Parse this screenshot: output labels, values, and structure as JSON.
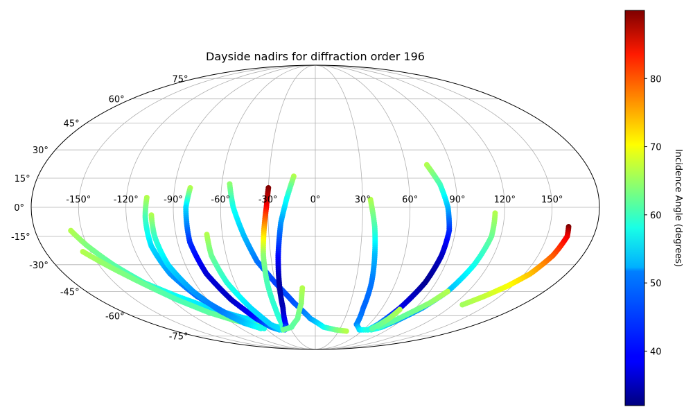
{
  "chart_data": {
    "type": "scatter",
    "projection": "mollweide",
    "title": "Dayside nadirs for diffraction order 196",
    "xlabel": "",
    "ylabel": "",
    "grid": true,
    "xlim": [
      -180,
      180
    ],
    "ylim": [
      -90,
      90
    ],
    "lon_ticks": [
      "-150°",
      "-120°",
      "-90°",
      "-60°",
      "-30°",
      "0°",
      "30°",
      "60°",
      "90°",
      "120°",
      "150°"
    ],
    "lat_ticks": [
      "75°",
      "60°",
      "45°",
      "30°",
      "15°",
      "0°",
      "-15°",
      "-30°",
      "-45°",
      "-60°",
      "-75°"
    ],
    "colorbar": {
      "label": "Incidence Angle (degrees)",
      "colormap": "jet",
      "range": [
        32,
        90
      ],
      "ticks": [
        "40",
        "50",
        "60",
        "70",
        "80"
      ],
      "tick_values": [
        40,
        50,
        60,
        70,
        80
      ]
    },
    "series": [
      {
        "points": [
          [
            -157,
            -12,
            64
          ],
          [
            -150,
            -20,
            61
          ],
          [
            -140,
            -30,
            59
          ],
          [
            -128,
            -40,
            57
          ],
          [
            -112,
            -48,
            54
          ],
          [
            -95,
            -55,
            52
          ],
          [
            -78,
            -60,
            51
          ],
          [
            -62,
            -64,
            53
          ],
          [
            -50,
            -67,
            57
          ],
          [
            -40,
            -68,
            55
          ]
        ]
      },
      {
        "points": [
          [
            -155,
            -23,
            64
          ],
          [
            -145,
            -30,
            62
          ],
          [
            -130,
            -40,
            60
          ],
          [
            -115,
            -50,
            58
          ],
          [
            -100,
            -58,
            59
          ],
          [
            -85,
            -63,
            60
          ],
          [
            -72,
            -66,
            61
          ],
          [
            -60,
            -68,
            62
          ]
        ]
      },
      {
        "points": [
          [
            -107,
            5,
            64
          ],
          [
            -108,
            -5,
            58
          ],
          [
            -108,
            -20,
            52
          ],
          [
            -104,
            -35,
            48
          ],
          [
            -96,
            -48,
            45
          ],
          [
            -85,
            -58,
            47
          ],
          [
            -72,
            -66,
            52
          ],
          [
            -62,
            -69,
            55
          ]
        ]
      },
      {
        "points": [
          [
            -104,
            -4,
            64
          ],
          [
            -104,
            -15,
            57
          ],
          [
            -102,
            -30,
            52
          ],
          [
            -96,
            -45,
            48
          ],
          [
            -88,
            -57,
            46
          ],
          [
            -78,
            -65,
            50
          ],
          [
            -66,
            -69,
            55
          ]
        ]
      },
      {
        "points": [
          [
            -80,
            10,
            64
          ],
          [
            -82,
            0,
            52
          ],
          [
            -82,
            -18,
            42
          ],
          [
            -78,
            -35,
            37
          ],
          [
            -70,
            -50,
            36
          ],
          [
            -60,
            -62,
            40
          ],
          [
            -52,
            -68,
            46
          ],
          [
            -45,
            -70,
            50
          ]
        ]
      },
      {
        "points": [
          [
            -70,
            -14,
            64
          ],
          [
            -70,
            -25,
            60
          ],
          [
            -66,
            -40,
            56
          ],
          [
            -58,
            -55,
            52
          ],
          [
            -50,
            -66,
            51
          ],
          [
            -42,
            -70,
            52
          ]
        ]
      },
      {
        "points": [
          [
            -55,
            12,
            62
          ],
          [
            -52,
            0,
            55
          ],
          [
            -46,
            -15,
            50
          ],
          [
            -40,
            -28,
            46
          ],
          [
            -30,
            -40,
            43
          ],
          [
            -18,
            -52,
            44
          ],
          [
            -5,
            -62,
            48
          ],
          [
            10,
            -68,
            54
          ],
          [
            25,
            -70,
            60
          ],
          [
            40,
            -71,
            64
          ]
        ]
      },
      {
        "points": [
          [
            -30,
            10,
            90
          ],
          [
            -31,
            0,
            83
          ],
          [
            -33,
            -12,
            72
          ],
          [
            -35,
            -25,
            62
          ],
          [
            -36,
            -40,
            58
          ],
          [
            -36,
            -55,
            56
          ],
          [
            -37,
            -66,
            56
          ],
          [
            -40,
            -70,
            58
          ]
        ]
      },
      {
        "points": [
          [
            -14,
            16,
            64
          ],
          [
            -18,
            5,
            55
          ],
          [
            -22,
            -8,
            48
          ],
          [
            -25,
            -25,
            40
          ],
          [
            -27,
            -40,
            34
          ],
          [
            -29,
            -55,
            35
          ],
          [
            -33,
            -66,
            40
          ],
          [
            -38,
            -70,
            46
          ]
        ]
      },
      {
        "points": [
          [
            -10,
            -43,
            64
          ],
          [
            -12,
            -52,
            62
          ],
          [
            -18,
            -62,
            60
          ],
          [
            -28,
            -68,
            59
          ],
          [
            -40,
            -70,
            60
          ]
        ]
      },
      {
        "points": [
          [
            35,
            4,
            64
          ],
          [
            38,
            -10,
            58
          ],
          [
            40,
            -25,
            50
          ],
          [
            42,
            -40,
            46
          ],
          [
            43,
            -55,
            45
          ],
          [
            46,
            -66,
            47
          ],
          [
            55,
            -70,
            52
          ],
          [
            65,
            -70,
            56
          ],
          [
            73,
            -69,
            60
          ]
        ]
      },
      {
        "points": [
          [
            74,
            22,
            64
          ],
          [
            80,
            12,
            58
          ],
          [
            84,
            0,
            50
          ],
          [
            86,
            -12,
            42
          ],
          [
            85,
            -25,
            36
          ],
          [
            82,
            -40,
            33
          ],
          [
            76,
            -55,
            38
          ],
          [
            70,
            -66,
            48
          ],
          [
            66,
            -70,
            55
          ]
        ]
      },
      {
        "points": [
          [
            114,
            -3,
            64
          ],
          [
            114,
            -15,
            60
          ],
          [
            110,
            -30,
            55
          ],
          [
            104,
            -45,
            50
          ],
          [
            96,
            -55,
            48
          ],
          [
            86,
            -63,
            48
          ],
          [
            78,
            -68,
            52
          ],
          [
            70,
            -70,
            56
          ]
        ]
      },
      {
        "points": [
          [
            104,
            -45,
            64
          ],
          [
            98,
            -52,
            62
          ],
          [
            90,
            -58,
            60
          ],
          [
            82,
            -64,
            59
          ],
          [
            75,
            -68,
            58
          ]
        ]
      },
      {
        "points": [
          [
            77,
            -56,
            64
          ],
          [
            75,
            -62,
            62
          ],
          [
            72,
            -66,
            60
          ],
          [
            69,
            -69,
            59
          ]
        ]
      },
      {
        "points": [
          [
            162,
            -10,
            90
          ],
          [
            163,
            -15,
            84
          ],
          [
            160,
            -25,
            78
          ],
          [
            154,
            -35,
            72
          ],
          [
            146,
            -42,
            68
          ],
          [
            137,
            -48,
            65
          ],
          [
            128,
            -53,
            63
          ]
        ]
      }
    ]
  }
}
